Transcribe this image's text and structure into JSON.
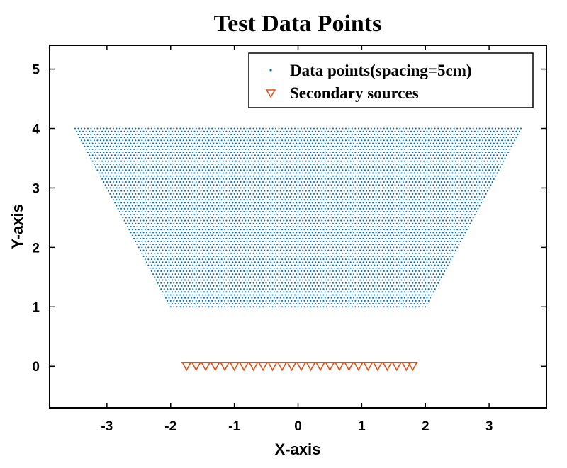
{
  "chart_data": {
    "type": "scatter",
    "title": "Test Data Points",
    "xlabel": "X-axis",
    "ylabel": "Y-axis",
    "xlim": [
      -3.9,
      3.9
    ],
    "ylim": [
      -0.7,
      5.4
    ],
    "xticks": [
      -3,
      -2,
      -1,
      0,
      1,
      2,
      3
    ],
    "yticks": [
      0,
      1,
      2,
      3,
      4,
      5
    ],
    "grid": false,
    "legend_position": "top-right",
    "series": [
      {
        "name": "Data points(spacing=5cm)",
        "marker": "dot",
        "color": "#0072BD",
        "region": {
          "shape": "trapezoid",
          "y_range": [
            1,
            4
          ],
          "bottom_x_range": [
            -2,
            2
          ],
          "top_x_range": [
            -3.5,
            3.5
          ],
          "spacing": 0.05
        }
      },
      {
        "name": "Secondary sources",
        "marker": "triangle-down",
        "color": "#D95319",
        "x": [
          -1.75,
          -1.6,
          -1.45,
          -1.3,
          -1.15,
          -1.0,
          -0.85,
          -0.7,
          -0.55,
          -0.4,
          -0.25,
          -0.1,
          0.05,
          0.2,
          0.35,
          0.5,
          0.65,
          0.8,
          0.95,
          1.1,
          1.25,
          1.4,
          1.55,
          1.7,
          1.8
        ],
        "y": [
          0,
          0,
          0,
          0,
          0,
          0,
          0,
          0,
          0,
          0,
          0,
          0,
          0,
          0,
          0,
          0,
          0,
          0,
          0,
          0,
          0,
          0,
          0,
          0,
          0
        ]
      }
    ]
  }
}
